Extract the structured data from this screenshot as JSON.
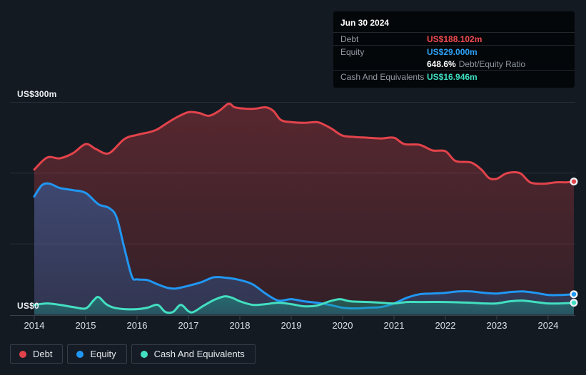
{
  "tooltip": {
    "date": "Jun 30 2024",
    "debt_label": "Debt",
    "debt_value": "US$188.102m",
    "equity_label": "Equity",
    "equity_value": "US$29.000m",
    "ratio_value": "648.6%",
    "ratio_label": "Debt/Equity Ratio",
    "cash_label": "Cash And Equivalents",
    "cash_value": "US$16.946m"
  },
  "colors": {
    "background": "#141a22",
    "tooltip_background": "#04070a",
    "gridline": "#272e37",
    "axis": "#3a414b",
    "debt": "#e2434b",
    "equity": "#2097f3",
    "cash": "#43dfc1",
    "debt_value_text": "#f0494f",
    "equity_value_text": "#2ba2f8",
    "cash_value_text": "#3edec0"
  },
  "chart_data": {
    "type": "area",
    "ylabel_top": "US$300m",
    "ylabel_bottom": "US$0",
    "y_range": [
      0,
      300
    ],
    "x_range": [
      2014,
      2024.5
    ],
    "gridline_values": [
      100,
      200,
      300
    ],
    "x_ticks": [
      2014,
      2015,
      2016,
      2017,
      2018,
      2019,
      2020,
      2021,
      2022,
      2023,
      2024
    ],
    "legend_position": "bottom-left",
    "series": [
      {
        "name": "Debt",
        "color": "#e2434b",
        "fill_from": "rgba(226,67,75,0.33)",
        "fill_to": "rgba(226,67,75,0.15)",
        "latest": 188.102,
        "points": [
          [
            2014.0,
            205
          ],
          [
            2014.25,
            222
          ],
          [
            2014.5,
            221
          ],
          [
            2014.75,
            228
          ],
          [
            2015.0,
            241
          ],
          [
            2015.2,
            234
          ],
          [
            2015.45,
            228
          ],
          [
            2015.75,
            248
          ],
          [
            2016.0,
            254
          ],
          [
            2016.25,
            258
          ],
          [
            2016.4,
            262
          ],
          [
            2016.55,
            269
          ],
          [
            2016.75,
            278
          ],
          [
            2017.0,
            286
          ],
          [
            2017.2,
            285
          ],
          [
            2017.4,
            281
          ],
          [
            2017.6,
            288
          ],
          [
            2017.78,
            298
          ],
          [
            2017.9,
            293
          ],
          [
            2018.1,
            291
          ],
          [
            2018.3,
            291
          ],
          [
            2018.5,
            293
          ],
          [
            2018.65,
            288
          ],
          [
            2018.8,
            275
          ],
          [
            2019.0,
            272
          ],
          [
            2019.25,
            271
          ],
          [
            2019.5,
            272
          ],
          [
            2019.65,
            268
          ],
          [
            2019.8,
            262
          ],
          [
            2020.0,
            253
          ],
          [
            2020.25,
            251
          ],
          [
            2020.5,
            250
          ],
          [
            2020.75,
            249
          ],
          [
            2021.0,
            250
          ],
          [
            2021.2,
            241
          ],
          [
            2021.5,
            240
          ],
          [
            2021.75,
            232
          ],
          [
            2022.0,
            231
          ],
          [
            2022.2,
            217
          ],
          [
            2022.5,
            215
          ],
          [
            2022.7,
            205
          ],
          [
            2022.85,
            193
          ],
          [
            2023.0,
            192
          ],
          [
            2023.2,
            200
          ],
          [
            2023.45,
            200
          ],
          [
            2023.65,
            187
          ],
          [
            2023.9,
            185
          ],
          [
            2024.15,
            187
          ],
          [
            2024.35,
            187
          ],
          [
            2024.5,
            188.102
          ]
        ]
      },
      {
        "name": "Equity",
        "color": "#2097f3",
        "fill_from": "rgba(42,128,222,0.38)",
        "fill_to": "rgba(42,128,222,0.22)",
        "latest": 29.0,
        "points": [
          [
            2014.0,
            167
          ],
          [
            2014.15,
            183
          ],
          [
            2014.3,
            185
          ],
          [
            2014.5,
            179
          ],
          [
            2014.75,
            176
          ],
          [
            2015.0,
            172
          ],
          [
            2015.25,
            156
          ],
          [
            2015.45,
            151
          ],
          [
            2015.6,
            138
          ],
          [
            2015.75,
            95
          ],
          [
            2015.9,
            54
          ],
          [
            2016.0,
            50
          ],
          [
            2016.2,
            49
          ],
          [
            2016.4,
            43
          ],
          [
            2016.6,
            38
          ],
          [
            2016.75,
            37
          ],
          [
            2017.0,
            41
          ],
          [
            2017.25,
            46
          ],
          [
            2017.5,
            53
          ],
          [
            2017.75,
            52
          ],
          [
            2018.0,
            49
          ],
          [
            2018.25,
            43
          ],
          [
            2018.5,
            30
          ],
          [
            2018.75,
            20
          ],
          [
            2019.0,
            22
          ],
          [
            2019.25,
            19
          ],
          [
            2019.5,
            17
          ],
          [
            2019.75,
            14
          ],
          [
            2020.0,
            10
          ],
          [
            2020.25,
            9
          ],
          [
            2020.5,
            10
          ],
          [
            2020.75,
            11
          ],
          [
            2021.0,
            16
          ],
          [
            2021.25,
            24
          ],
          [
            2021.5,
            29
          ],
          [
            2021.75,
            30
          ],
          [
            2022.0,
            31
          ],
          [
            2022.25,
            33
          ],
          [
            2022.5,
            33
          ],
          [
            2022.75,
            31
          ],
          [
            2023.0,
            30
          ],
          [
            2023.25,
            32
          ],
          [
            2023.5,
            33
          ],
          [
            2023.75,
            31
          ],
          [
            2024.0,
            28
          ],
          [
            2024.25,
            28
          ],
          [
            2024.5,
            29
          ]
        ]
      },
      {
        "name": "Cash And Equivalents",
        "color": "#43dfc1",
        "fill_from": "rgba(23,156,135,0.5)",
        "fill_to": "rgba(23,156,135,0.3)",
        "latest": 16.946,
        "points": [
          [
            2014.0,
            14
          ],
          [
            2014.25,
            16
          ],
          [
            2014.5,
            14
          ],
          [
            2014.75,
            11
          ],
          [
            2015.0,
            9
          ],
          [
            2015.15,
            20
          ],
          [
            2015.25,
            25
          ],
          [
            2015.4,
            15
          ],
          [
            2015.55,
            10
          ],
          [
            2015.75,
            8
          ],
          [
            2016.0,
            8
          ],
          [
            2016.2,
            10
          ],
          [
            2016.4,
            14
          ],
          [
            2016.55,
            4
          ],
          [
            2016.7,
            4
          ],
          [
            2016.85,
            14
          ],
          [
            2017.0,
            5
          ],
          [
            2017.1,
            4
          ],
          [
            2017.3,
            13
          ],
          [
            2017.5,
            21
          ],
          [
            2017.7,
            26
          ],
          [
            2017.85,
            24
          ],
          [
            2018.0,
            19
          ],
          [
            2018.25,
            14
          ],
          [
            2018.5,
            15
          ],
          [
            2018.75,
            17
          ],
          [
            2019.0,
            15
          ],
          [
            2019.25,
            12
          ],
          [
            2019.5,
            13
          ],
          [
            2019.75,
            19
          ],
          [
            2019.95,
            22
          ],
          [
            2020.15,
            19
          ],
          [
            2020.5,
            18
          ],
          [
            2020.75,
            17
          ],
          [
            2021.0,
            16
          ],
          [
            2021.25,
            18
          ],
          [
            2021.5,
            18
          ],
          [
            2022.0,
            18
          ],
          [
            2022.5,
            17
          ],
          [
            2022.75,
            16
          ],
          [
            2023.0,
            16
          ],
          [
            2023.25,
            19
          ],
          [
            2023.5,
            20
          ],
          [
            2023.75,
            18
          ],
          [
            2024.0,
            16
          ],
          [
            2024.25,
            16
          ],
          [
            2024.5,
            16.946
          ]
        ]
      }
    ]
  }
}
